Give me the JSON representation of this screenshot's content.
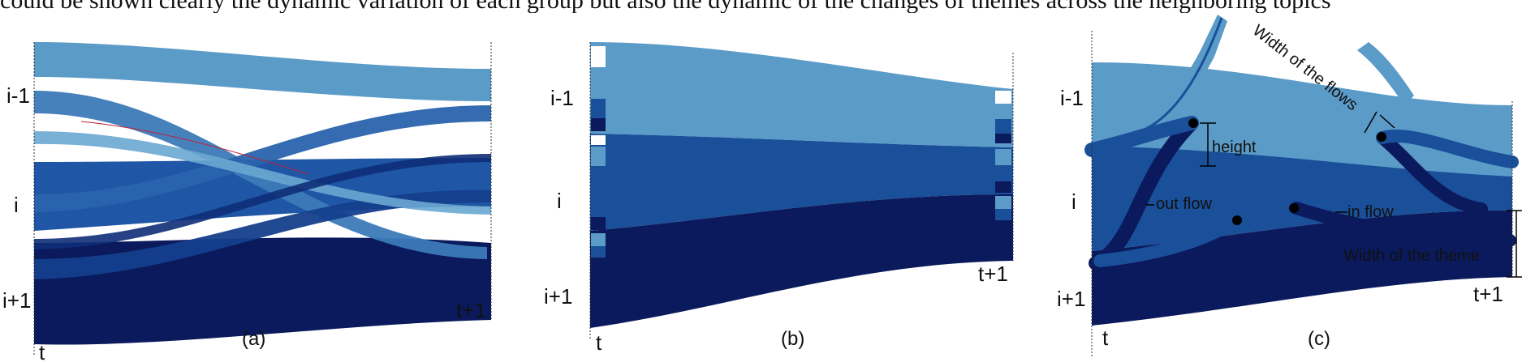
{
  "caption_fragment": "could be shown clearly the dynamic variation of each group but also the dynamic of the changes of themes across the neighboring topics",
  "panels": [
    {
      "label": "(a)",
      "left_axis_labels": [
        "i-1",
        "i",
        "i+1"
      ],
      "left_time_label": "t",
      "right_time_label": "t+1"
    },
    {
      "label": "(b)",
      "left_axis_labels": [
        "i-1",
        "i",
        "i+1"
      ],
      "left_time_label": "t",
      "right_time_label": "t+1"
    },
    {
      "label": "(c)",
      "left_axis_labels": [
        "i-1",
        "i",
        "i+1"
      ],
      "left_time_label": "t",
      "right_time_label": "t+1",
      "annotations": {
        "height": "height",
        "out_flow": "out flow",
        "in_flow": "in flow",
        "width_of_flows": "Width of the flows",
        "width_of_theme": "Width of the theme"
      }
    }
  ],
  "colors": {
    "theme_top": "#5b9bc8",
    "theme_mid": "#1a4f9a",
    "theme_bottom": "#0a1a5c",
    "white_marker": "#ffffff"
  }
}
